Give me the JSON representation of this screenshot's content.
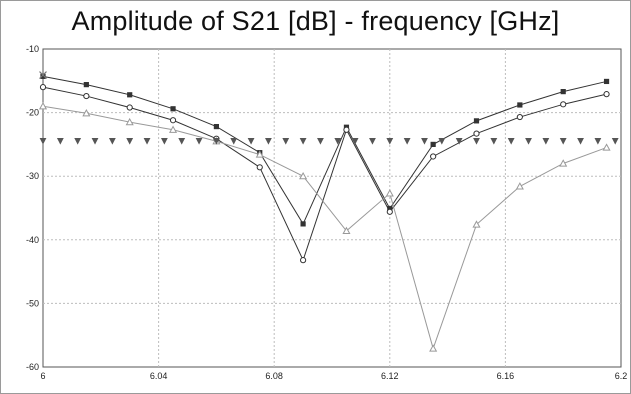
{
  "chart_data": {
    "type": "line",
    "title": "Amplitude of S21 [dB] - frequency [GHz]",
    "xlabel": "",
    "ylabel": "",
    "xlim": [
      6,
      6.2
    ],
    "ylim": [
      -60,
      -10
    ],
    "x_ticks": [
      6,
      6.04,
      6.08,
      6.12,
      6.16,
      6.2
    ],
    "x_tick_labels": [
      "6",
      "6.04",
      "6.08",
      "6.12",
      "6.16",
      "6.2"
    ],
    "y_ticks": [
      -10,
      -20,
      -30,
      -40,
      -50,
      -60
    ],
    "y_tick_labels": [
      "-10",
      "-20",
      "-30",
      "-40",
      "-50",
      "-60"
    ],
    "grid": true,
    "x": [
      6.0,
      6.015,
      6.03,
      6.045,
      6.06,
      6.075,
      6.09,
      6.105,
      6.12,
      6.135,
      6.15,
      6.165,
      6.18,
      6.195
    ],
    "series": [
      {
        "marker": "square",
        "color": "#333333",
        "values": [
          -14.3,
          -15.6,
          -17.2,
          -19.4,
          -22.2,
          -26.3,
          -37.5,
          -22.3,
          -35.1,
          -25.0,
          -21.3,
          -18.8,
          -16.7,
          -15.1
        ]
      },
      {
        "marker": "circle",
        "color": "#333333",
        "values": [
          -16.0,
          -17.4,
          -19.2,
          -21.2,
          -24.1,
          -28.6,
          -43.2,
          -22.7,
          -35.6,
          -26.9,
          -23.3,
          -20.7,
          -18.7,
          -17.1
        ]
      },
      {
        "marker": "triangle",
        "color": "#999999",
        "values": [
          -19.0,
          -20.1,
          -21.5,
          -22.7,
          -24.5,
          -26.6,
          -30.0,
          -38.6,
          -32.7,
          -57.1,
          -37.6,
          -31.6,
          -28.0,
          -25.5
        ]
      },
      {
        "marker": "x",
        "color": "#777777",
        "values": [
          -14.1,
          null,
          null,
          null,
          null,
          null,
          null,
          null,
          null,
          null,
          null,
          null,
          null,
          null
        ]
      },
      {
        "marker": "inverted-triangle",
        "color": "#555555",
        "line": false,
        "x": [
          6.0,
          6.006,
          6.012,
          6.018,
          6.024,
          6.03,
          6.036,
          6.042,
          6.048,
          6.054,
          6.06,
          6.066,
          6.072,
          6.078,
          6.084,
          6.09,
          6.096,
          6.102,
          6.108,
          6.114,
          6.12,
          6.126,
          6.132,
          6.138,
          6.144,
          6.15,
          6.156,
          6.162,
          6.168,
          6.174,
          6.18,
          6.186,
          6.192,
          6.198
        ],
        "values": [
          -24.5,
          -24.5,
          -24.5,
          -24.5,
          -24.5,
          -24.5,
          -24.5,
          -24.5,
          -24.5,
          -24.5,
          -24.5,
          -24.5,
          -24.5,
          -24.5,
          -24.5,
          -24.5,
          -24.5,
          -24.5,
          -24.5,
          -24.5,
          -24.5,
          -24.5,
          -24.5,
          -24.5,
          -24.5,
          -24.5,
          -24.5,
          -24.5,
          -24.5,
          -24.5,
          -24.5,
          -24.5,
          -24.5,
          -24.5
        ]
      }
    ]
  }
}
